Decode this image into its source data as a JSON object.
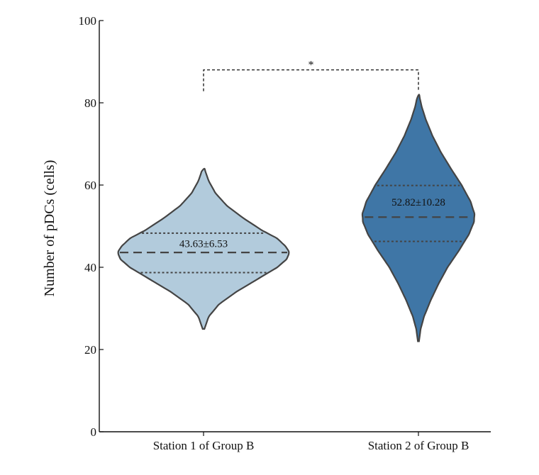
{
  "chart_data": {
    "type": "violin",
    "ylabel": "Number of pDCs (cells)",
    "xlabel": "",
    "ylim": [
      0,
      100
    ],
    "yticks": [
      0,
      20,
      40,
      60,
      80,
      100
    ],
    "categories": [
      "Station 1 of Group B",
      "Station 2 of Group B"
    ],
    "violins": [
      {
        "category": "Station 1 of Group B",
        "color": "#b2cbdc",
        "min": 25,
        "max": 64,
        "q1": 38.7,
        "median": 43.6,
        "q3": 48.3,
        "annotation": "43.63±6.53",
        "profile": [
          [
            25,
            0.01
          ],
          [
            28,
            0.06
          ],
          [
            31,
            0.18
          ],
          [
            34,
            0.38
          ],
          [
            37,
            0.62
          ],
          [
            40,
            0.86
          ],
          [
            42,
            0.97
          ],
          [
            43.6,
            1.0
          ],
          [
            45,
            0.96
          ],
          [
            47,
            0.86
          ],
          [
            49,
            0.68
          ],
          [
            52,
            0.46
          ],
          [
            55,
            0.27
          ],
          [
            58,
            0.14
          ],
          [
            61,
            0.06
          ],
          [
            64,
            0.01
          ]
        ]
      },
      {
        "category": "Station 2 of Group B",
        "color": "#3f76a6",
        "min": 22,
        "max": 82,
        "q1": 46.3,
        "median": 52.2,
        "q3": 59.9,
        "annotation": "52.82±10.28",
        "profile": [
          [
            22,
            0.01
          ],
          [
            25,
            0.04
          ],
          [
            28,
            0.1
          ],
          [
            32,
            0.22
          ],
          [
            36,
            0.36
          ],
          [
            40,
            0.52
          ],
          [
            44,
            0.72
          ],
          [
            48,
            0.9
          ],
          [
            51,
            0.99
          ],
          [
            53,
            1.0
          ],
          [
            56,
            0.93
          ],
          [
            60,
            0.77
          ],
          [
            64,
            0.58
          ],
          [
            68,
            0.4
          ],
          [
            72,
            0.25
          ],
          [
            76,
            0.13
          ],
          [
            79,
            0.06
          ],
          [
            82,
            0.01
          ]
        ]
      }
    ],
    "significance": {
      "from": 0,
      "to": 1,
      "y": 88,
      "label": "*"
    },
    "quartile_style": "dashed"
  }
}
